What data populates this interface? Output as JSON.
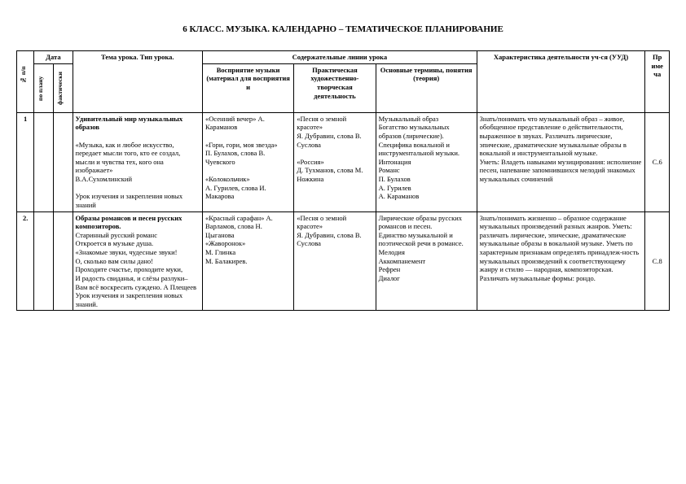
{
  "title": "6 КЛАСС. МУЗЫКА. КАЛЕНДАРНО – ТЕМАТИЧЕСКОЕ ПЛАНИРОВАНИЕ",
  "headers": {
    "num": "№ п/п",
    "date": "Дата",
    "date_plan": "по плану",
    "date_fact": "фактически",
    "tema": "Тема урока.\nТип урока.",
    "sod": "Содержательные линии урока",
    "vospr": "Восприятие музыки (материал для восприятия и",
    "prakt": "Практическая художественно-творческая деятельность",
    "term": "Основные термины, понятия (теория)",
    "uud": "Характеристика деятельности уч-ся (УУД)",
    "prim": "Пр име ча"
  },
  "rows": [
    {
      "num": "1",
      "tema": "Удивительный мир музыкальных образов\n\n«Музыка, как и любое искусство, передает мысли того, кто ее создал, мысли и чувства тех, кого она изображает»\n      В.А.Сухомлинский\n\nУрок     изучения     и закрепления новых знаний",
      "tema_bold_lines": [
        0
      ],
      "vospr": "«Осенний вечер» А. Караманов\n\n«Гори, гори, моя звезда»\nП. Булахов, слова В. Чуевского\n\n«Колокольчик»\nА. Гурилев, слова И. Макарова",
      "prakt": "«Песня о земной красоте»\nЯ.       Дубравин, слова В. Суслова\n\n«Россия»\nД. Тухманов, слова М. Ножкина",
      "term": "Музыкальный образ\nБогатство музыкальных образов (лирические). Специфика вокальной и инструментальной музыки.\nИнтонация\nРоманс\nП. Булахов\nА. Гурилев\nА. Караманов",
      "uud": "Знать/понимать что музыкальный образ – живое, обобщенное представление о действительности, выраженное в звуках. Различать лирические, эпические, драматические музыкальные образы в вокальной и инструментальной музыке.\nУметь: Владеть навыками музицирования: исполнение песен, напевание запомнившихся мелодий знакомых музыкальных сочинений",
      "prim": "С.6"
    },
    {
      "num": "2.",
      "tema": "Образы романсов и песен русских композиторов.\nСтаринный русский романс\nОткроется в музыке душа.\n«Знакомые звуки, чудесные звуки!\nО, сколько вам силы дано!\nПроходите счастье, проходите муки,\nИ радость свиданья, и слёзы разлуки–\nВам всё воскресить суждено.   А Плещеев\nУрок     изучения     и закрепления новых знаний.",
      "tema_bold_lines": [
        0
      ],
      "vospr": "«Красный сарафан» А. Варламов, слова Н. Цыганова\n«Жаворонок»\nМ. Глинка\nМ. Балакирев.",
      "prakt": "«Песня о земной красоте»\nЯ.       Дубравин, слова В. Суслова",
      "term": "Лирические образы русских романсов и песен.\nЕдинство музыкальной и поэтической речи в романсе.\nМелодия\nАккомпанемент\nРефрен\nДиалог",
      "uud": "Знать/понимать жизненно – образное содержание музыкальных произведений разных жанров. Уметь: различать лирические, эпические, драматические музыкальные образы в вокальной музыке. Уметь по характерным признакам определять принадлеж-ность музыкальных произведений к соответствующему жанру и стилю — народная, композиторская. Различать музыкальные формы: рондо.",
      "prim": "С.8"
    }
  ]
}
